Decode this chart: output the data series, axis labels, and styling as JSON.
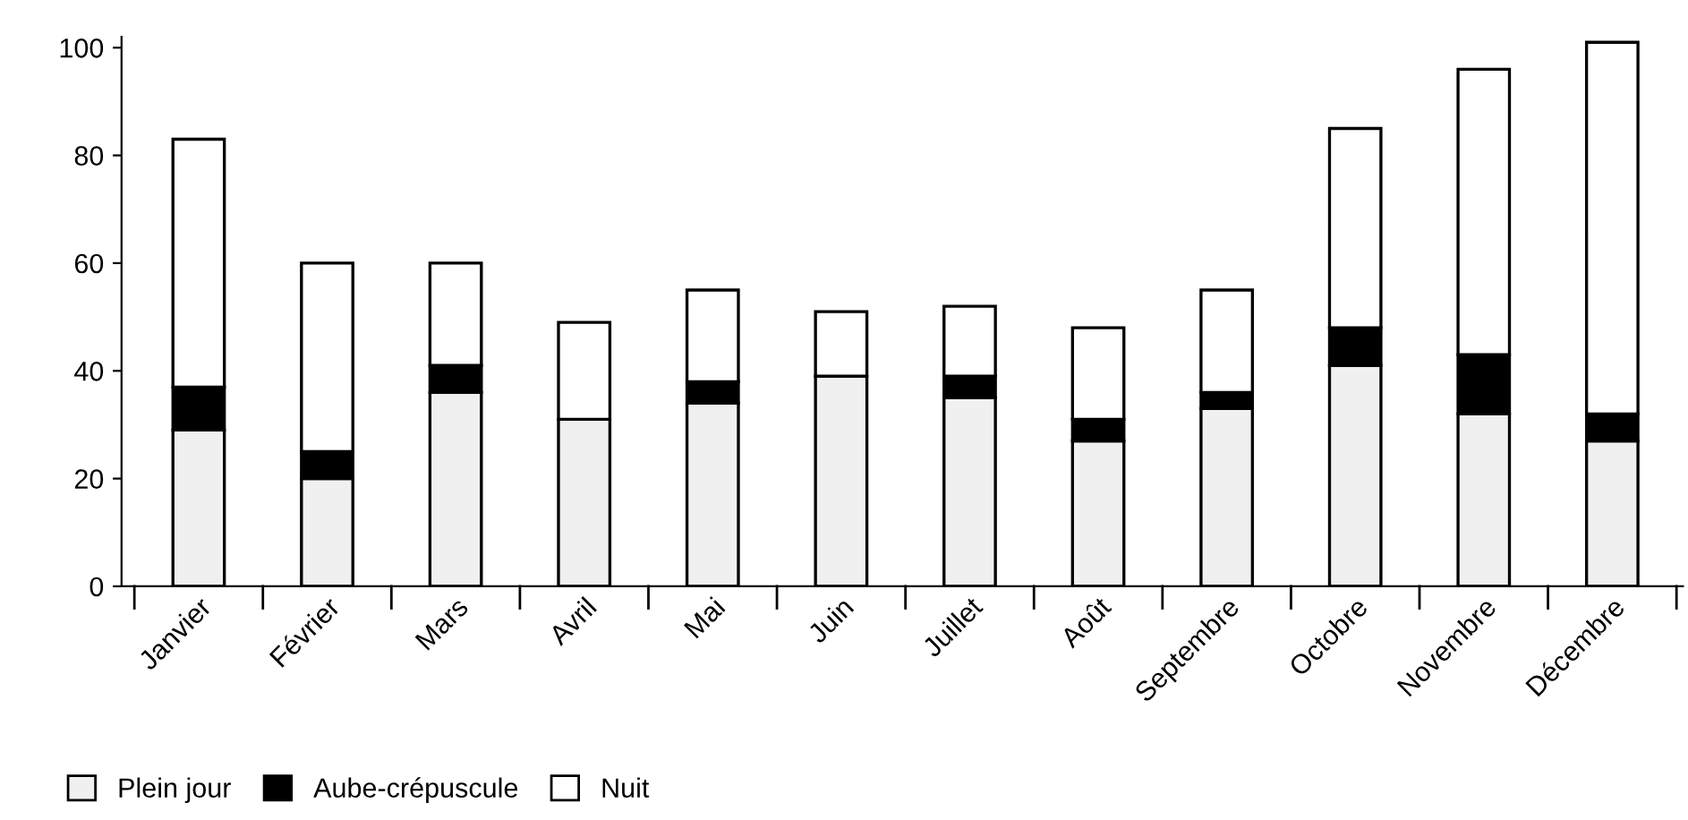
{
  "chart_data": {
    "type": "bar",
    "stacked": true,
    "categories": [
      "Janvier",
      "Février",
      "Mars",
      "Avril",
      "Mai",
      "Juin",
      "Juillet",
      "Août",
      "Septembre",
      "Octobre",
      "Novembre",
      "Décembre"
    ],
    "series": [
      {
        "name": "Plein jour",
        "color": "#f0f0f0",
        "values": [
          29,
          20,
          36,
          31,
          34,
          39,
          35,
          27,
          33,
          41,
          32,
          27
        ]
      },
      {
        "name": "Aube-crépuscule",
        "color": "#000000",
        "values": [
          8,
          5,
          5,
          0,
          4,
          0,
          4,
          4,
          3,
          7,
          11,
          5
        ]
      },
      {
        "name": "Nuit",
        "color": "#ffffff",
        "values": [
          46,
          35,
          19,
          18,
          17,
          12,
          13,
          17,
          19,
          37,
          53,
          69
        ]
      }
    ],
    "ylim": [
      0,
      102
    ],
    "yticks": [
      0,
      20,
      40,
      60,
      80,
      100
    ],
    "grid": false,
    "legend": "bottom left"
  }
}
